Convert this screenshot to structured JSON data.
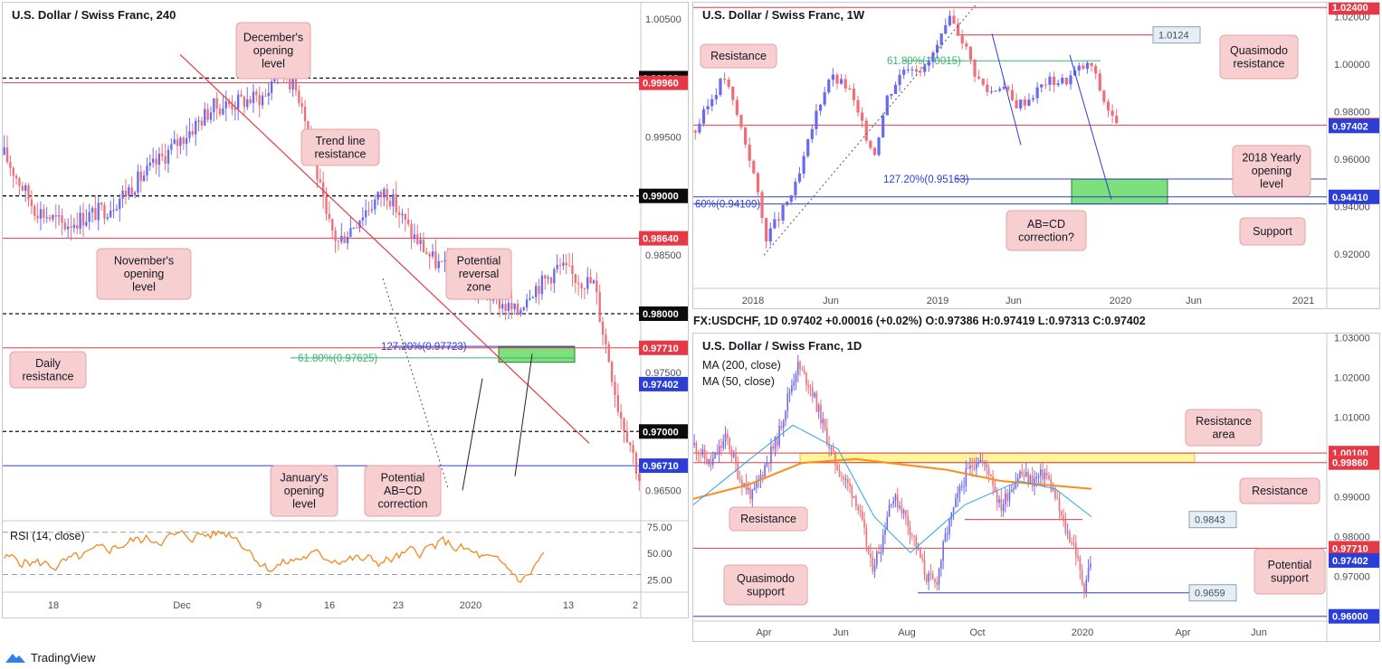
{
  "branding": {
    "name": "TradingView"
  },
  "colors": {
    "bull": "#6a6af0",
    "bear": "#ef6f78",
    "resistance": "#e53945",
    "support": "#2b3fd6",
    "fib_green": "#3cb371",
    "zone_green": "#7de07d",
    "ma200": "#ff8c1a",
    "ma50": "#2aa4e8",
    "rsi": "#f08a24",
    "note_bg": "#f8cfd0",
    "note_border": "#e3a3a6"
  },
  "chart_data": [
    {
      "id": "h4",
      "type": "candlestick",
      "title": "U.S. Dollar / Swiss Franc, 240",
      "ylim": [
        0.9625,
        1.0064
      ],
      "y_ticks": [
        "1.00500",
        "0.99500",
        "0.98500",
        "0.97500",
        "0.96500"
      ],
      "x_ticks": [
        "18",
        "Dec",
        "9",
        "16",
        "23",
        "2020",
        "13",
        "2"
      ],
      "bars": 210,
      "anchors": [
        [
          0,
          0.9935
        ],
        [
          10,
          0.989
        ],
        [
          20,
          0.9875
        ],
        [
          35,
          0.989
        ],
        [
          50,
          0.9925
        ],
        [
          70,
          0.9975
        ],
        [
          88,
          0.9985
        ],
        [
          92,
          1.0015
        ],
        [
          100,
          0.998
        ],
        [
          104,
          0.993
        ],
        [
          108,
          0.988
        ],
        [
          112,
          0.986
        ],
        [
          120,
          0.9885
        ],
        [
          128,
          0.9905
        ],
        [
          136,
          0.987
        ],
        [
          144,
          0.9845
        ],
        [
          152,
          0.983
        ],
        [
          160,
          0.982
        ],
        [
          166,
          0.981
        ],
        [
          172,
          0.98
        ],
        [
          176,
          0.982
        ],
        [
          180,
          0.9825
        ],
        [
          186,
          0.984
        ],
        [
          192,
          0.983
        ],
        [
          198,
          0.9825
        ],
        [
          200,
          0.9795
        ],
        [
          203,
          0.976
        ],
        [
          206,
          0.972
        ],
        [
          210,
          0.969
        ],
        [
          213,
          0.966
        ]
      ],
      "levels": [
        {
          "value": 1.0,
          "label": "1.00000",
          "style": "dash-black"
        },
        {
          "value": 0.9996,
          "label": "0.99960",
          "style": "red"
        },
        {
          "value": 0.99,
          "label": "0.99000",
          "style": "dash-black"
        },
        {
          "value": 0.9864,
          "label": "0.98640",
          "style": "red"
        },
        {
          "value": 0.98,
          "label": "0.98000",
          "style": "dash-black"
        },
        {
          "value": 0.9771,
          "label": "0.97710",
          "style": "red"
        },
        {
          "value": 0.97402,
          "label": "0.97402",
          "style": "current"
        },
        {
          "value": 0.97,
          "label": "0.97000",
          "style": "dash-black"
        },
        {
          "value": 0.9671,
          "label": "0.96710",
          "style": "blue"
        }
      ],
      "fibs": [
        {
          "value": 0.97723,
          "label": "127.20%(0.97723)",
          "color": "#2b3fd6"
        },
        {
          "value": 0.97625,
          "label": "61.80%(0.97625)",
          "color": "#3cb371"
        }
      ],
      "annotations": [
        {
          "text": [
            "December's",
            "opening",
            "level"
          ]
        },
        {
          "text": [
            "Trend line",
            "resistance"
          ]
        },
        {
          "text": [
            "November's",
            "opening",
            "level"
          ]
        },
        {
          "text": [
            "Potential",
            "reversal",
            "zone"
          ]
        },
        {
          "text": [
            "Daily",
            "resistance"
          ]
        },
        {
          "text": [
            "January's",
            "opening",
            "level"
          ]
        },
        {
          "text": [
            "Potential",
            "AB=CD",
            "correction"
          ]
        }
      ],
      "rsi": {
        "label": "RSI (14, close)",
        "ylim": [
          15,
          80
        ],
        "ticks": [
          "75.00",
          "50.00",
          "25.00"
        ],
        "bands": [
          70,
          30
        ]
      }
    },
    {
      "id": "w1",
      "type": "candlestick",
      "title": "U.S. Dollar / Swiss Franc, 1W",
      "ylim": [
        0.9055,
        1.026
      ],
      "y_ticks": [
        "1.02000",
        "1.00000",
        "0.98000",
        "0.96000",
        "0.94000",
        "0.92000"
      ],
      "x_ticks": [
        "2018",
        "Jun",
        "2019",
        "Jun",
        "2020",
        "Jun",
        "2021"
      ],
      "bars": 102,
      "anchors": [
        [
          0,
          0.972
        ],
        [
          6,
          0.988
        ],
        [
          9,
          0.995
        ],
        [
          14,
          0.975
        ],
        [
          18,
          0.956
        ],
        [
          22,
          0.927
        ],
        [
          26,
          0.935
        ],
        [
          32,
          0.95
        ],
        [
          38,
          0.98
        ],
        [
          42,
          0.995
        ],
        [
          48,
          0.99
        ],
        [
          52,
          0.975
        ],
        [
          56,
          0.962
        ],
        [
          60,
          0.986
        ],
        [
          66,
          1.0
        ],
        [
          72,
          0.998
        ],
        [
          76,
          1.008
        ],
        [
          80,
          1.019
        ],
        [
          84,
          1.01
        ],
        [
          88,
          0.995
        ],
        [
          92,
          0.988
        ],
        [
          96,
          0.992
        ],
        [
          100,
          0.983
        ],
        [
          104,
          0.985
        ],
        [
          110,
          0.993
        ],
        [
          116,
          0.993
        ],
        [
          120,
          0.998
        ],
        [
          124,
          1.0
        ],
        [
          128,
          0.985
        ],
        [
          132,
          0.974
        ]
      ],
      "levels": [
        {
          "value": 1.024,
          "label": "1.02400",
          "style": "red"
        },
        {
          "value": 0.9744,
          "label": "0.97440",
          "style": "red"
        },
        {
          "value": 0.97402,
          "label": "0.97402",
          "style": "current"
        },
        {
          "value": 0.9441,
          "label": "0.94410",
          "style": "blue"
        }
      ],
      "fibs": [
        {
          "value": 1.0015,
          "label": "61.80%(1.0015)",
          "color": "#3cb371"
        },
        {
          "value": 0.95163,
          "label": "127.20%(0.95163)",
          "color": "#2b3fd6"
        },
        {
          "value": 0.94109,
          "label": "60%(0.94109)",
          "color": "#2b3fd6"
        }
      ],
      "callouts": [
        {
          "label": "1.0124",
          "value": 1.0124
        }
      ],
      "annotations": [
        {
          "text": [
            "Resistance"
          ]
        },
        {
          "text": [
            "Quasimodo",
            "resistance"
          ]
        },
        {
          "text": [
            "2018 Yearly",
            "opening",
            "level"
          ]
        },
        {
          "text": [
            "AB=CD",
            "correction?"
          ]
        },
        {
          "text": [
            "Support"
          ]
        }
      ]
    },
    {
      "id": "d1",
      "type": "candlestick",
      "title": "U.S. Dollar / Swiss Franc, 1D",
      "ylim": [
        0.9588,
        1.031
      ],
      "y_ticks": [
        "1.03000",
        "1.02000",
        "1.01000",
        "0.99000",
        "0.98000",
        "0.97000"
      ],
      "x_ticks": [
        "Apr",
        "Jun",
        "Aug",
        "Oct",
        "2020",
        "Apr",
        "Jun"
      ],
      "legend": [
        "MA (200, close)",
        "MA (50, close)"
      ],
      "bars": 192,
      "anchors": [
        [
          0,
          1.003
        ],
        [
          10,
          0.998
        ],
        [
          20,
          1.005
        ],
        [
          28,
          0.995
        ],
        [
          36,
          0.99
        ],
        [
          44,
          0.998
        ],
        [
          52,
          1.005
        ],
        [
          58,
          1.015
        ],
        [
          64,
          1.023
        ],
        [
          72,
          1.018
        ],
        [
          80,
          1.008
        ],
        [
          86,
          1.0
        ],
        [
          92,
          0.995
        ],
        [
          100,
          0.99
        ],
        [
          106,
          0.98
        ],
        [
          110,
          0.972
        ],
        [
          116,
          0.978
        ],
        [
          122,
          0.99
        ],
        [
          128,
          0.988
        ],
        [
          136,
          0.98
        ],
        [
          144,
          0.97
        ],
        [
          150,
          0.968
        ],
        [
          156,
          0.98
        ],
        [
          162,
          0.988
        ],
        [
          168,
          0.995
        ],
        [
          176,
          1.0
        ],
        [
          184,
          0.996
        ],
        [
          190,
          0.987
        ],
        [
          196,
          0.992
        ],
        [
          202,
          0.996
        ],
        [
          210,
          0.994
        ],
        [
          218,
          0.996
        ],
        [
          224,
          0.99
        ],
        [
          230,
          0.982
        ],
        [
          236,
          0.978
        ],
        [
          240,
          0.97
        ],
        [
          242,
          0.9672
        ],
        [
          246,
          0.974
        ]
      ],
      "levels": [
        {
          "value": 1.001,
          "label": "1.00100",
          "style": "red"
        },
        {
          "value": 0.9986,
          "label": "0.99860",
          "style": "red"
        },
        {
          "value": 0.9771,
          "label": "0.97710",
          "style": "red"
        },
        {
          "value": 0.97402,
          "label": "0.97402",
          "style": "current"
        },
        {
          "value": 0.96,
          "label": "0.96000",
          "style": "blue"
        }
      ],
      "callouts": [
        {
          "label": "0.9843",
          "value": 0.9843
        },
        {
          "label": "0.9659",
          "value": 0.9659
        }
      ],
      "annotations": [
        {
          "text": [
            "Resistance",
            "area"
          ]
        },
        {
          "text": [
            "Resistance"
          ]
        },
        {
          "text": [
            "Resistance"
          ]
        },
        {
          "text": [
            "Potential",
            "support"
          ]
        },
        {
          "text": [
            "Quasimodo",
            "support"
          ]
        }
      ]
    }
  ],
  "ticker": {
    "symbol": "FX:USDCHF, 1D",
    "price": "0.97402",
    "change": "+0.00016 (+0.02%)",
    "o_label": "O:",
    "o": "0.97386",
    "h_label": "H:",
    "h": "0.97419",
    "l_label": "L:",
    "l": "0.97313",
    "c_label": "C:",
    "c": "0.97402"
  }
}
